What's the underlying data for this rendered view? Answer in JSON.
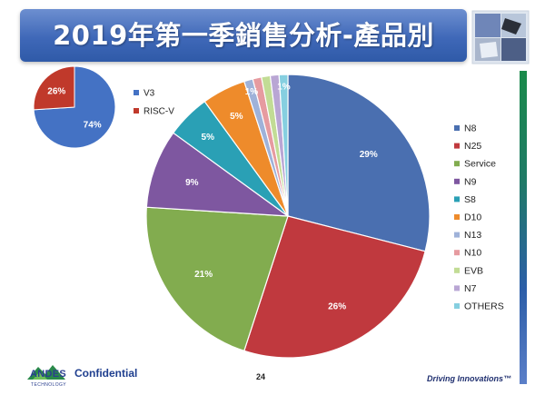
{
  "slide": {
    "title": "2019年第一季銷售分析-產品別",
    "footer_brand": "ANDES",
    "footer_brand_sub": "TECHNOLOGY",
    "footer_confidential": "Confidential",
    "page_number": "24",
    "tagline": "Driving Innovations™"
  },
  "chart_data": [
    {
      "type": "pie",
      "categories": [
        "V3",
        "RISC-V"
      ],
      "values": [
        74,
        26
      ],
      "value_labels": [
        "74%",
        "26%"
      ],
      "colors": [
        "#4472c4",
        "#c0392b"
      ],
      "legend_position": "right"
    },
    {
      "type": "pie",
      "categories": [
        "N8",
        "N25",
        "Service",
        "N9",
        "S8",
        "D10",
        "N13",
        "N10",
        "EVB",
        "N7",
        "OTHERS"
      ],
      "values": [
        29,
        26,
        21,
        9,
        5,
        5,
        1,
        1,
        1,
        1,
        1
      ],
      "value_labels": [
        "29%",
        "26%",
        "21%",
        "9%",
        "5%",
        "5%",
        "1%",
        "",
        "",
        "",
        "1%"
      ],
      "colors": [
        "#4a6fb0",
        "#c0393e",
        "#82ac4f",
        "#7e57a0",
        "#2aa0b5",
        "#ee8b2b",
        "#9fb2d9",
        "#e69ba0",
        "#c2dc95",
        "#b9a6d4",
        "#86cfe0"
      ],
      "legend_position": "right"
    }
  ]
}
